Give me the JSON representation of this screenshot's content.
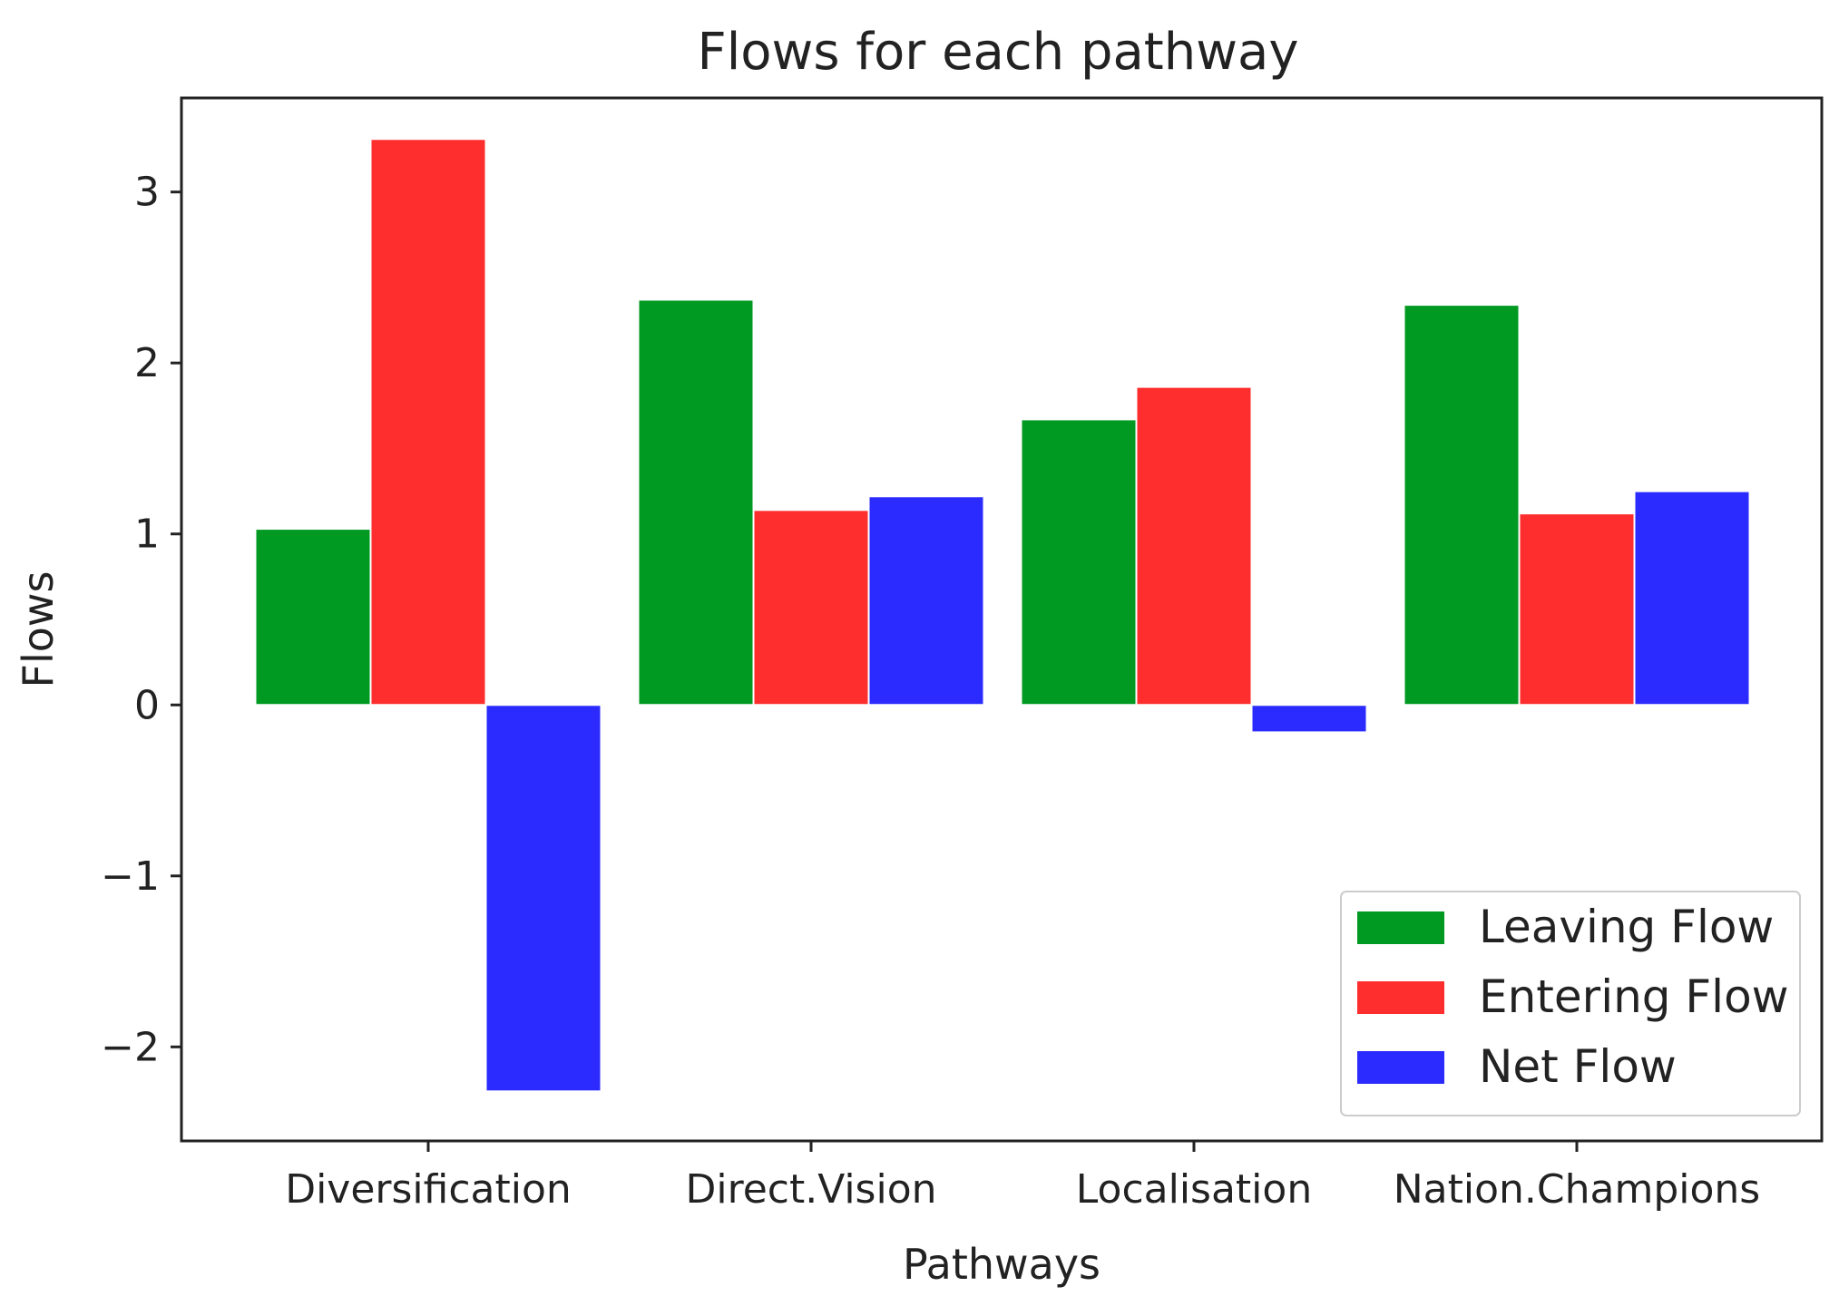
{
  "chart_data": {
    "type": "bar",
    "title": "Flows for each pathway",
    "xlabel": "Pathways",
    "ylabel": "Flows",
    "categories": [
      "Diversification",
      "Direct.Vision",
      "Localisation",
      "Nation.Champions"
    ],
    "series": [
      {
        "name": "Leaving Flow",
        "color": "#009922",
        "values": [
          1.03,
          2.37,
          1.67,
          2.34
        ]
      },
      {
        "name": "Entering Flow",
        "color": "#ff2e2e",
        "values": [
          3.31,
          1.14,
          1.86,
          1.12
        ]
      },
      {
        "name": "Net Flow",
        "color": "#2b2bff",
        "values": [
          -2.26,
          1.22,
          -0.16,
          1.25
        ]
      }
    ],
    "ylim": [
      -2.55,
      3.55
    ],
    "yticks": [
      -2,
      -1,
      0,
      1,
      2,
      3
    ],
    "ytick_labels": [
      "−2",
      "−1",
      "0",
      "1",
      "2",
      "3"
    ],
    "grid": false,
    "legend_position": "lower-right"
  }
}
